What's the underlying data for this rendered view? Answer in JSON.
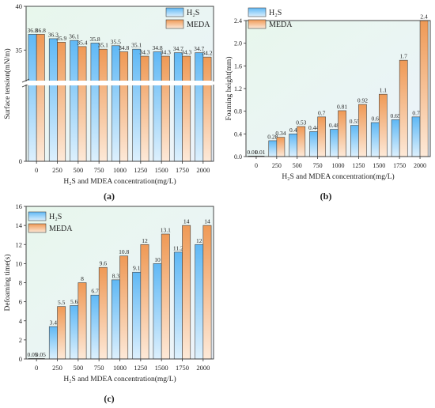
{
  "chart_data": [
    {
      "type": "bar",
      "panel_label": "(a)",
      "xlabel": "H₂S and MDEA concentration(mg/L)",
      "ylabel": "Surface tension(mN/m)",
      "categories": [
        "0",
        "250",
        "500",
        "750",
        "1000",
        "1250",
        "1500",
        "1750",
        "2000"
      ],
      "ylim": [
        0,
        40
      ],
      "axis_break": true,
      "yticks": [
        "0",
        "5",
        "10",
        "15",
        "20",
        "25",
        "30",
        "35",
        "40"
      ],
      "legend_position": "top-right",
      "series": [
        {
          "name": "H₂S",
          "values": [
            36.8,
            36.3,
            36.1,
            35.8,
            35.5,
            35.1,
            34.8,
            34.7,
            34.7
          ],
          "labels": [
            "36.8",
            "36.3",
            "36.1",
            "35.8",
            "35.5",
            "35.1",
            "34.8",
            "34.7",
            "34.7"
          ]
        },
        {
          "name": "MEDA",
          "values": [
            36.8,
            35.9,
            35.4,
            35.1,
            34.8,
            34.3,
            34.3,
            34.3,
            34.2
          ],
          "labels": [
            "36.8",
            "35.9",
            "35.4",
            "35.1",
            "34.8",
            "34.3",
            "34.3",
            "34.3",
            "34.2"
          ]
        }
      ]
    },
    {
      "type": "bar",
      "panel_label": "(b)",
      "xlabel": "H₂S and MDEA concentration(mg/L)",
      "ylabel": "Foaming height(mm)",
      "categories": [
        "0",
        "250",
        "500",
        "750",
        "1000",
        "1250",
        "1500",
        "1750",
        "2000"
      ],
      "ylim": [
        0,
        2.4
      ],
      "yticks": [
        "0.0",
        "0.4",
        "0.8",
        "1.2",
        "1.6",
        "2.0",
        "2.4"
      ],
      "legend_position": "top-left",
      "series": [
        {
          "name": "H₂S",
          "values": [
            0.01,
            0.28,
            0.4,
            0.44,
            0.48,
            0.55,
            0.6,
            0.65,
            0.7
          ],
          "labels": [
            "0.01",
            "0.28",
            "0.4",
            "0.44",
            "0.48",
            "0.55",
            "0.6",
            "0.65",
            "0.7"
          ]
        },
        {
          "name": "MEDA",
          "values": [
            0.01,
            0.34,
            0.53,
            0.7,
            0.81,
            0.92,
            1.1,
            1.7,
            2.4
          ],
          "labels": [
            "0.01",
            "0.34",
            "0.53",
            "0.7",
            "0.81",
            "0.92",
            "1.1",
            "1.7",
            "2.4"
          ]
        }
      ]
    },
    {
      "type": "bar",
      "panel_label": "(c)",
      "xlabel": "H₂S and MDEA concentration(mg/L)",
      "ylabel": "Defoaming time(s)",
      "categories": [
        "0",
        "250",
        "500",
        "750",
        "1000",
        "1250",
        "1500",
        "1750",
        "2000"
      ],
      "ylim": [
        0,
        16
      ],
      "yticks": [
        "0",
        "2",
        "4",
        "6",
        "8",
        "10",
        "12",
        "14",
        "16"
      ],
      "legend_position": "top-left",
      "series": [
        {
          "name": "H₂S",
          "values": [
            0.05,
            3.4,
            5.6,
            6.7,
            8.3,
            9.1,
            10,
            11.2,
            12
          ],
          "labels": [
            "0.05",
            "3.4",
            "5.6",
            "6.7",
            "8.3",
            "9.1",
            "10",
            "11.2",
            "12"
          ]
        },
        {
          "name": "MEDA",
          "values": [
            0.05,
            5.5,
            8,
            9.6,
            10.8,
            12,
            13.1,
            14,
            14
          ],
          "labels": [
            "0.05",
            "5.5",
            "8",
            "9.6",
            "10.8",
            "12",
            "13.1",
            "14",
            "14"
          ]
        }
      ]
    }
  ],
  "colors": {
    "h2s_top": "#5fb8f5",
    "h2s_bottom": "#ddf0fd",
    "meda_top": "#ef9955",
    "meda_bottom": "#fde9d8",
    "plot_bg_top": "#e8f7ec",
    "plot_bg_bottom": "#ecf3fb"
  }
}
